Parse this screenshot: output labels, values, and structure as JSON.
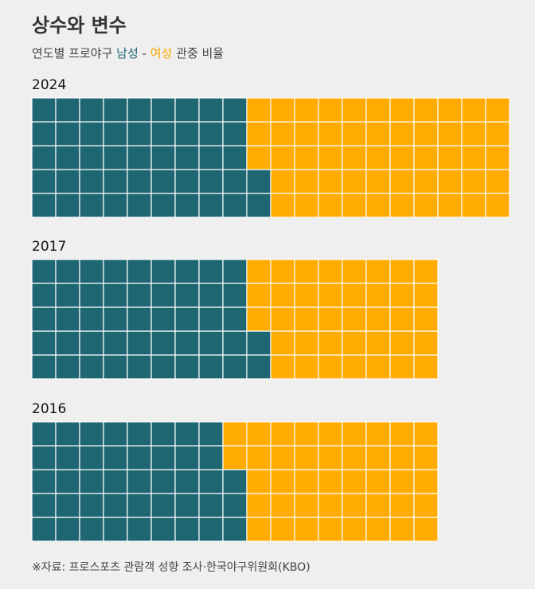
{
  "header": {
    "title": "상수와 변수",
    "subtitle_prefix": "연도별 프로야구",
    "male_label": "남성",
    "separator": "-",
    "female_label": "여성",
    "subtitle_suffix": "관중 비율"
  },
  "source": "※자료: 프로스포츠 관람객 성향 조사·한국야구위원회(KBO)",
  "colors": {
    "male": "#1f6673",
    "female": "#ffab00",
    "background": "#efefef"
  },
  "chart_data": [
    {
      "type": "waffle",
      "title": "2024",
      "rows": 5,
      "total_cells": 100,
      "series": [
        {
          "name": "남성",
          "cells": 47
        },
        {
          "name": "여성",
          "cells": 53
        }
      ]
    },
    {
      "type": "waffle",
      "title": "2017",
      "rows": 5,
      "total_cells": 85,
      "series": [
        {
          "name": "남성",
          "cells": 47
        },
        {
          "name": "여성",
          "cells": 38
        }
      ]
    },
    {
      "type": "waffle",
      "title": "2016",
      "rows": 5,
      "total_cells": 85,
      "series": [
        {
          "name": "남성",
          "cells": 43
        },
        {
          "name": "여성",
          "cells": 42
        }
      ]
    }
  ]
}
